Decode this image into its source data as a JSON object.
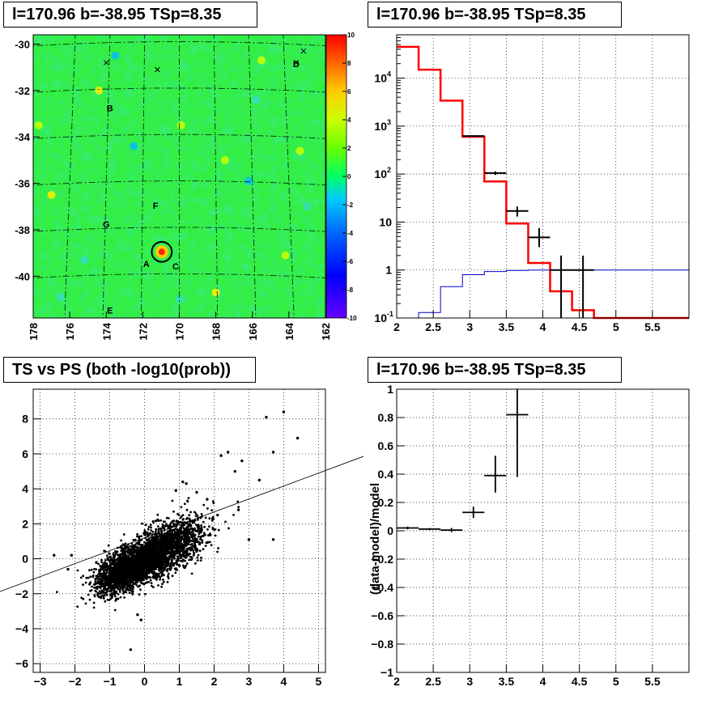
{
  "panels": {
    "map": {
      "title": "l=170.96 b=-38.95 TSp=8.35"
    },
    "spectrum": {
      "title": "l=170.96 b=-38.95 TSp=8.35"
    },
    "scatter": {
      "title": "TS vs PS (both -log10(prob))"
    },
    "residual": {
      "title": "l=170.96 b=-38.95 TSp=8.35"
    }
  },
  "chart_data": [
    {
      "type": "heatmap",
      "title": "l=170.96 b=-38.95 TSp=8.35",
      "x_ticks": [
        "178",
        "176",
        "174",
        "172",
        "170",
        "168",
        "166",
        "164",
        "162"
      ],
      "y_ticks": [
        "-30",
        "-32",
        "-34",
        "-36",
        "-38",
        "-40"
      ],
      "xlim": [
        178,
        162
      ],
      "ylim": [
        -41.8,
        -29.6
      ],
      "colorbar": {
        "min": -10,
        "max": 10,
        "ticks": [
          "10",
          "8",
          "6",
          "4",
          "2",
          "0",
          "-2",
          "-4",
          "-6",
          "-8",
          "-10"
        ]
      },
      "source_labels": [
        {
          "label": "B",
          "l": 173.8,
          "b": -32.9
        },
        {
          "label": "D",
          "l": 163.6,
          "b": -31.0
        },
        {
          "label": "F",
          "l": 171.3,
          "b": -37.1
        },
        {
          "label": "G",
          "l": 174.0,
          "b": -37.9
        },
        {
          "label": "A",
          "l": 171.8,
          "b": -39.6
        },
        {
          "label": "C",
          "l": 170.2,
          "b": -39.7
        },
        {
          "label": "E",
          "l": 173.8,
          "b": -41.6
        }
      ],
      "markers": [
        {
          "l": 174.0,
          "b": -30.8
        },
        {
          "l": 171.2,
          "b": -31.1
        },
        {
          "l": 163.2,
          "b": -30.3
        },
        {
          "l": 163.6,
          "b": -30.8
        }
      ],
      "hotspots": [
        {
          "l": 170.96,
          "b": -38.95,
          "value": 9
        },
        {
          "l": 168.0,
          "b": -40.7,
          "value": 3
        },
        {
          "l": 174.4,
          "b": -32.0,
          "value": 3
        },
        {
          "l": 177.0,
          "b": -36.5,
          "value": 3
        },
        {
          "l": 169.9,
          "b": -33.5,
          "value": 2
        },
        {
          "l": 165.5,
          "b": -30.7,
          "value": 2
        },
        {
          "l": 164.2,
          "b": -39.1,
          "value": 2
        },
        {
          "l": 163.4,
          "b": -34.6,
          "value": 2
        },
        {
          "l": 177.7,
          "b": -33.5,
          "value": 2
        },
        {
          "l": 167.5,
          "b": -35.0,
          "value": 2
        }
      ],
      "coldspots": [
        {
          "l": 173.5,
          "b": -30.5,
          "value": -3
        },
        {
          "l": 172.5,
          "b": -34.4,
          "value": -3
        },
        {
          "l": 166.2,
          "b": -35.9,
          "value": -3
        },
        {
          "l": 175.2,
          "b": -39.3,
          "value": -2
        },
        {
          "l": 170.0,
          "b": -41.0,
          "value": -2
        },
        {
          "l": 163.0,
          "b": -37.0,
          "value": -2
        },
        {
          "l": 176.5,
          "b": -40.9,
          "value": -2
        },
        {
          "l": 165.8,
          "b": -32.4,
          "value": -2
        }
      ],
      "circle": {
        "l": 170.96,
        "b": -38.95,
        "radius_deg": 0.55
      }
    },
    {
      "type": "line",
      "title": "l=170.96 b=-38.95 TSp=8.35",
      "xlim": [
        2,
        6
      ],
      "ylim": [
        0.1,
        80000
      ],
      "log_y": true,
      "x_ticks": [
        "2",
        "2.5",
        "3",
        "3.5",
        "4",
        "4.5",
        "5",
        "5.5"
      ],
      "y_ticks": [
        {
          "value": 0.1,
          "label": "10",
          "sup": "-1"
        },
        {
          "value": 1,
          "label": "1",
          "sup": ""
        },
        {
          "value": 10,
          "label": "10",
          "sup": ""
        },
        {
          "value": 100,
          "label": "10",
          "sup": "2"
        },
        {
          "value": 1000,
          "label": "10",
          "sup": "3"
        },
        {
          "value": 10000,
          "label": "10",
          "sup": "4"
        }
      ],
      "series": [
        {
          "color": "#ff0000",
          "edges": [
            2,
            2.3,
            2.6,
            2.9,
            3.2,
            3.5,
            3.8,
            4.1,
            4.4,
            4.7,
            5.0,
            5.3,
            5.6,
            5.9,
            6.0
          ],
          "values": [
            45000,
            15000,
            3400,
            600,
            70,
            9.3,
            1.4,
            0.36,
            0.145,
            0.1,
            0.1,
            0.1,
            0.1,
            0.1
          ]
        },
        {
          "color": "#0000cc",
          "edges": [
            2,
            2.3,
            2.6,
            2.9,
            3.2,
            3.5,
            3.8,
            4.1,
            4.4,
            4.7,
            5.0,
            5.3,
            5.6,
            5.9,
            6.0
          ],
          "values": [
            0.1,
            0.13,
            0.45,
            0.8,
            0.93,
            0.98,
            1.0,
            1.0,
            1.0,
            1.0,
            1.0,
            1.0,
            1.0,
            1.0
          ]
        }
      ],
      "points": [
        {
          "x": 3.05,
          "xerr": 0.15,
          "y": 620,
          "ylo": 600,
          "yhi": 640
        },
        {
          "x": 3.35,
          "xerr": 0.15,
          "y": 105,
          "ylo": 96,
          "yhi": 114
        },
        {
          "x": 3.65,
          "xerr": 0.15,
          "y": 17,
          "ylo": 13,
          "yhi": 21
        },
        {
          "x": 3.95,
          "xerr": 0.15,
          "y": 4.8,
          "ylo": 3.0,
          "yhi": 7.5
        },
        {
          "x": 4.25,
          "xerr": 0.15,
          "y": 1.0,
          "ylo": 0.1,
          "yhi": 2.0
        },
        {
          "x": 4.55,
          "xerr": 0.15,
          "y": 1.0,
          "ylo": 0.1,
          "yhi": 2.0
        }
      ]
    },
    {
      "type": "scatter",
      "title": "TS vs PS (both -log10(prob))",
      "xlim": [
        -3.2,
        5.2
      ],
      "ylim": [
        -6.5,
        9.7
      ],
      "x_ticks": [
        -3,
        -2,
        -1,
        0,
        1,
        2,
        3,
        4,
        5
      ],
      "y_ticks": [
        -6,
        -4,
        -2,
        0,
        2,
        4,
        6,
        8
      ],
      "fit_line": {
        "slope": 0.74,
        "intercept": 1.2
      },
      "cloud": {
        "count": 4000,
        "components": [
          {
            "weight": 0.55,
            "mx": -0.5,
            "my": -0.6,
            "sx": 0.42,
            "sy": 0.65,
            "rho": 0.55
          },
          {
            "weight": 0.45,
            "mx": 0.6,
            "my": 0.6,
            "sx": 0.55,
            "sy": 0.85,
            "rho": 0.55
          }
        ]
      },
      "outliers": [
        {
          "x": 4.0,
          "y": 8.4
        },
        {
          "x": 3.5,
          "y": 8.1
        },
        {
          "x": 4.4,
          "y": 6.9
        },
        {
          "x": 3.7,
          "y": 6.1
        },
        {
          "x": 2.4,
          "y": 6.1
        },
        {
          "x": 2.2,
          "y": 5.9
        },
        {
          "x": 2.8,
          "y": 5.6
        },
        {
          "x": 2.6,
          "y": 5.0
        },
        {
          "x": 3.3,
          "y": 4.5
        },
        {
          "x": 1.2,
          "y": 4.3
        },
        {
          "x": 1.1,
          "y": 4.4
        },
        {
          "x": 1.5,
          "y": 3.8
        },
        {
          "x": 2.7,
          "y": 2.8
        },
        {
          "x": 3.7,
          "y": 1.1
        },
        {
          "x": 3.0,
          "y": 1.1
        },
        {
          "x": -2.6,
          "y": 0.2
        },
        {
          "x": -2.1,
          "y": 0.2
        },
        {
          "x": -2.2,
          "y": -0.6
        },
        {
          "x": -1.0,
          "y": -1.4
        },
        {
          "x": -0.8,
          "y": -2.3
        },
        {
          "x": -0.2,
          "y": -3.2
        },
        {
          "x": -0.1,
          "y": -3.5
        },
        {
          "x": -0.4,
          "y": -5.2
        },
        {
          "x": 1.8,
          "y": 3.4
        },
        {
          "x": 0.9,
          "y": 3.9
        },
        {
          "x": 2.1,
          "y": 2.5
        }
      ]
    },
    {
      "type": "scatter",
      "title": "l=170.96 b=-38.95 TSp=8.35",
      "ylabel": "(data-model)/model",
      "xlim": [
        2,
        6
      ],
      "ylim": [
        -1,
        1
      ],
      "x_ticks": [
        "2",
        "2.5",
        "3",
        "3.5",
        "4",
        "4.5",
        "5",
        "5.5"
      ],
      "y_ticks": [
        "1",
        "0.8",
        "0.6",
        "0.4",
        "0.2",
        "0",
        "-0.2",
        "-0.4",
        "-0.6",
        "-0.8",
        "-1"
      ],
      "points": [
        {
          "x": 2.15,
          "xerr": 0.15,
          "y": 0.02,
          "ylo": 0.01,
          "yhi": 0.03
        },
        {
          "x": 2.45,
          "xerr": 0.15,
          "y": 0.012,
          "ylo": 0.005,
          "yhi": 0.02
        },
        {
          "x": 2.75,
          "xerr": 0.15,
          "y": 0.005,
          "ylo": -0.01,
          "yhi": 0.02
        },
        {
          "x": 3.05,
          "xerr": 0.15,
          "y": 0.13,
          "ylo": 0.09,
          "yhi": 0.17
        },
        {
          "x": 3.35,
          "xerr": 0.15,
          "y": 0.39,
          "ylo": 0.27,
          "yhi": 0.53
        },
        {
          "x": 3.65,
          "xerr": 0.15,
          "y": 0.82,
          "ylo": 0.38,
          "yhi": 1.0
        }
      ]
    }
  ]
}
